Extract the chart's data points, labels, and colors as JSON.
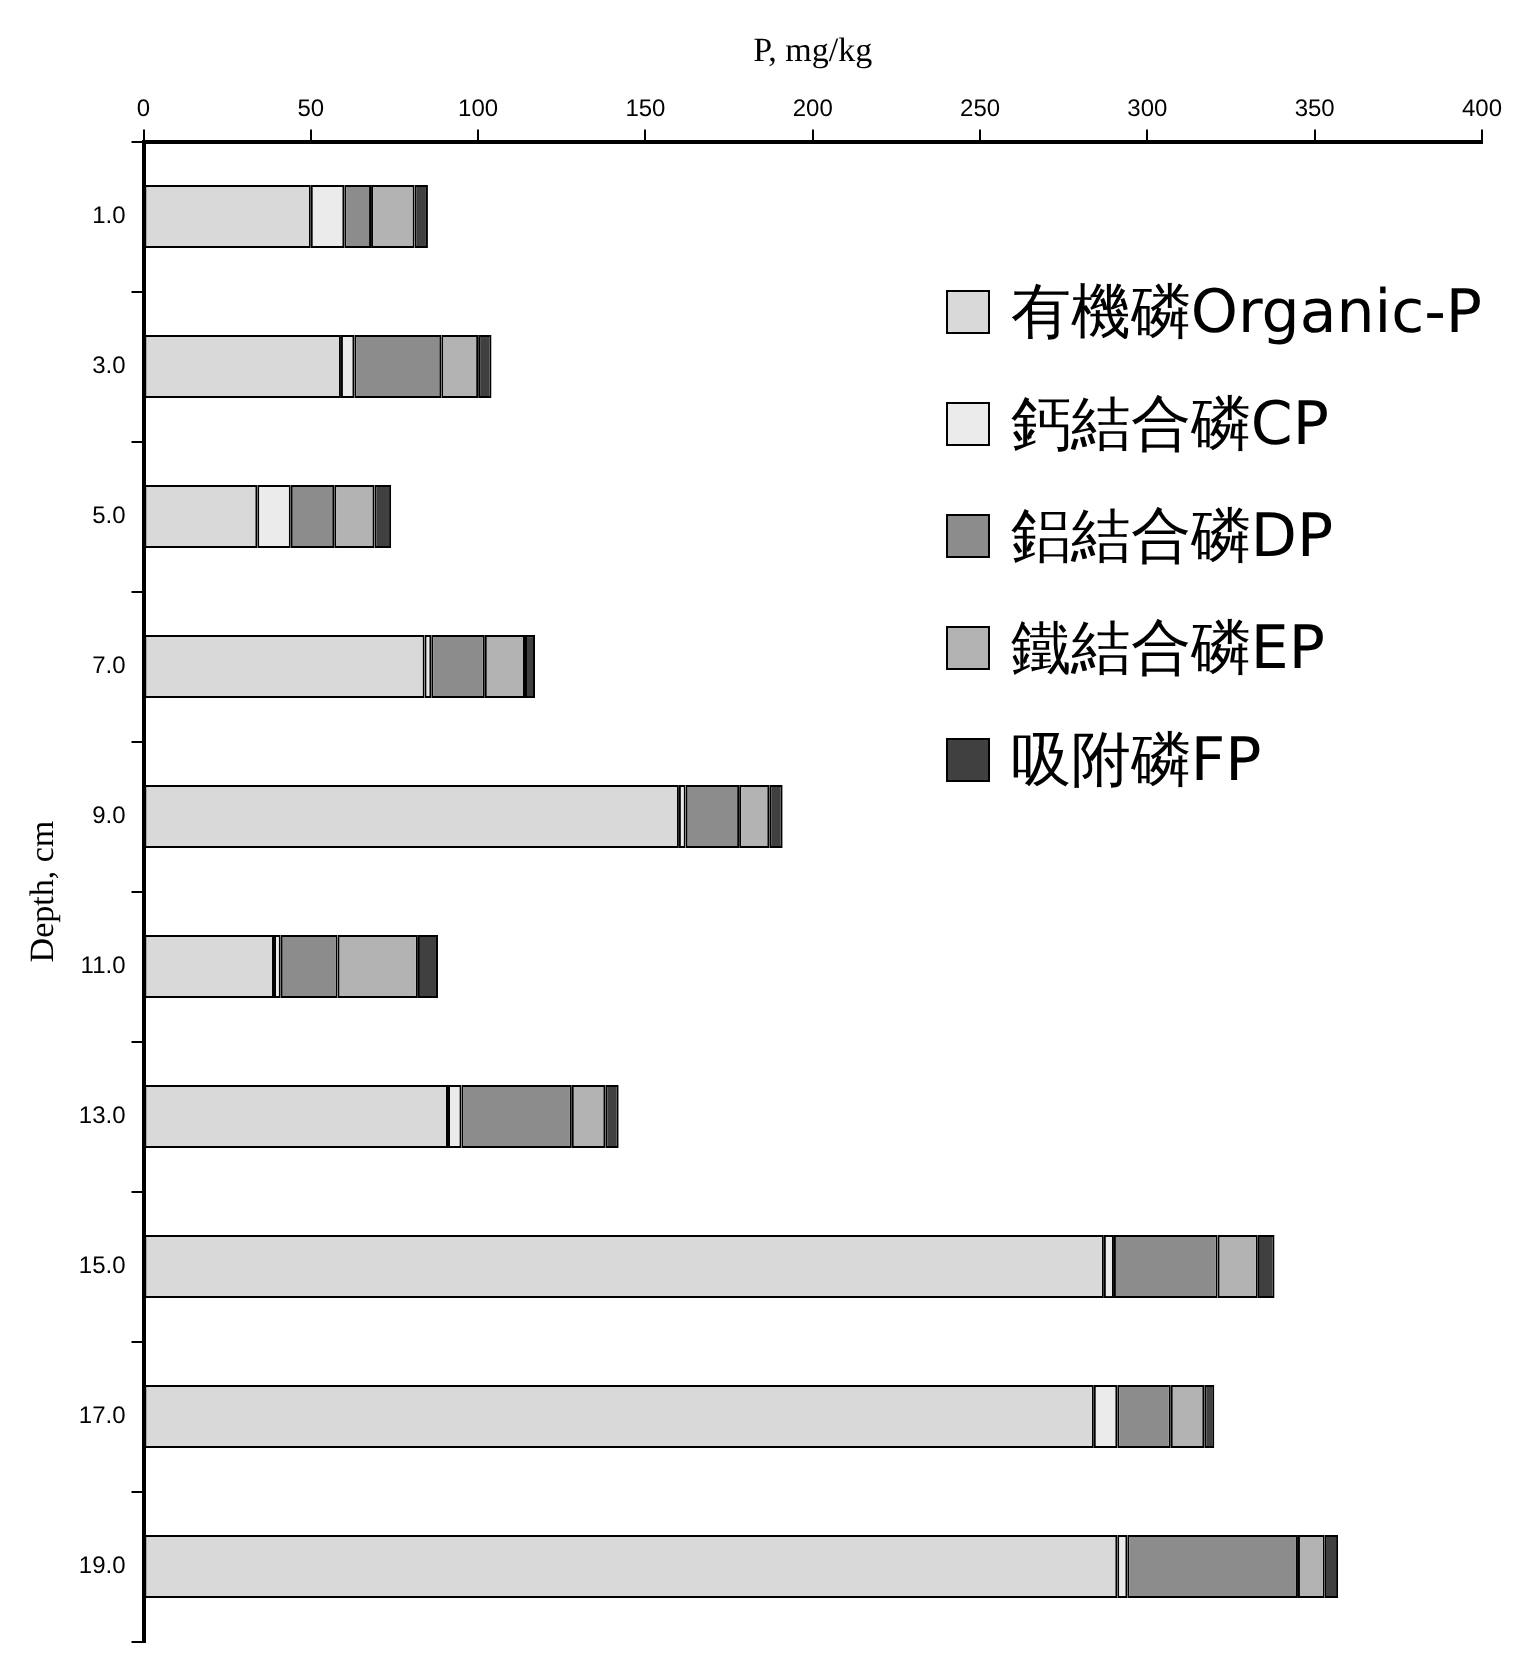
{
  "chart_data": {
    "type": "bar",
    "orientation": "horizontal",
    "stacked": true,
    "xlabel": "P, mg/kg",
    "ylabel": "Depth, cm",
    "categories": [
      "1.0",
      "3.0",
      "5.0",
      "7.0",
      "9.0",
      "11.0",
      "13.0",
      "15.0",
      "17.0",
      "19.0"
    ],
    "xlim": [
      0,
      400
    ],
    "xticks": [
      0,
      50,
      100,
      150,
      200,
      250,
      300,
      350,
      400
    ],
    "grid": false,
    "legend": "top right",
    "series": [
      {
        "name": "有機磷Organic-P",
        "color": "#d9d9d9",
        "values": [
          50,
          59,
          34,
          84,
          160,
          39,
          91,
          287,
          284,
          291
        ]
      },
      {
        "name": "鈣結合磷CP",
        "color": "#ebebeb",
        "values": [
          10,
          4,
          10,
          2,
          2,
          2,
          4,
          3,
          7,
          3
        ]
      },
      {
        "name": "鋁結合磷DP",
        "color": "#8c8c8c",
        "values": [
          8,
          26,
          13,
          16,
          16,
          17,
          33,
          31,
          16,
          51
        ]
      },
      {
        "name": "鐵結合磷EP",
        "color": "#b3b3b3",
        "values": [
          13,
          11,
          12,
          12,
          9,
          24,
          10,
          12,
          10,
          8
        ]
      },
      {
        "name": "吸附磷FP",
        "color": "#404040",
        "values": [
          4,
          4,
          5,
          3,
          4,
          6,
          4,
          5,
          3,
          4
        ]
      }
    ]
  }
}
